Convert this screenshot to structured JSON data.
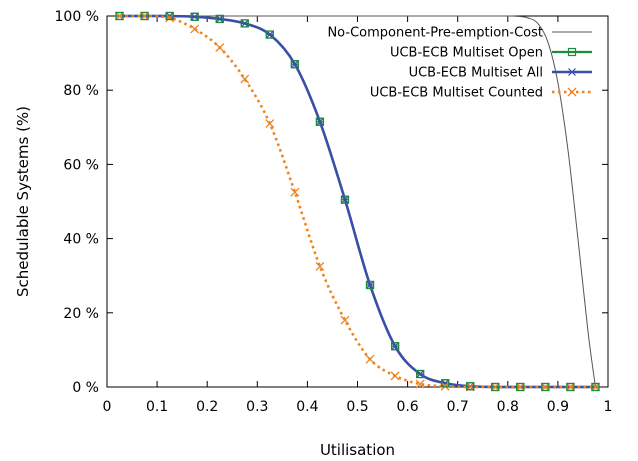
{
  "chart_data": {
    "type": "line",
    "title": "",
    "xlabel": "Utilisation",
    "ylabel": "Schedulable Systems (%)",
    "xlim": [
      0,
      1
    ],
    "ylim": [
      0,
      100
    ],
    "x_ticks": [
      0,
      0.1,
      0.2,
      0.3,
      0.4,
      0.5,
      0.6,
      0.7,
      0.8,
      0.9,
      1
    ],
    "x_tick_labels": [
      "0",
      "0.1",
      "0.2",
      "0.3",
      "0.4",
      "0.5",
      "0.6",
      "0.7",
      "0.8",
      "0.9",
      "1"
    ],
    "y_ticks": [
      0,
      20,
      40,
      60,
      80,
      100
    ],
    "y_tick_labels": [
      "0 %",
      "20 %",
      "40 %",
      "60 %",
      "80 %",
      "100 %"
    ],
    "grid": false,
    "legend_position": "top-right",
    "series": [
      {
        "name": "No-Component-Pre-emption-Cost",
        "color": "#555555",
        "marker": "none",
        "dash": "solid",
        "x": [
          0.025,
          0.1,
          0.2,
          0.3,
          0.4,
          0.5,
          0.6,
          0.7,
          0.75,
          0.8,
          0.82,
          0.84,
          0.86,
          0.88,
          0.9,
          0.92,
          0.94,
          0.96,
          0.975
        ],
        "y": [
          100,
          100,
          100,
          100,
          100,
          100,
          100,
          100,
          100,
          100,
          99.9,
          99.5,
          98,
          93,
          82,
          64,
          40,
          15,
          0
        ]
      },
      {
        "name": "UCB-ECB Multiset Open",
        "color": "#1a8c3c",
        "marker": "square",
        "dash": "solid",
        "x": [
          0.025,
          0.075,
          0.125,
          0.175,
          0.225,
          0.275,
          0.325,
          0.375,
          0.425,
          0.475,
          0.525,
          0.575,
          0.625,
          0.675,
          0.725,
          0.775,
          0.825,
          0.875,
          0.925,
          0.975
        ],
        "y": [
          100,
          100,
          100,
          99.8,
          99.2,
          98,
          95,
          87,
          71.5,
          50.5,
          27.5,
          11,
          3.5,
          1,
          0.2,
          0,
          0,
          0,
          0,
          0
        ]
      },
      {
        "name": "UCB-ECB Multiset All",
        "color": "#3a4fa8",
        "marker": "star",
        "dash": "solid",
        "x": [
          0.025,
          0.075,
          0.125,
          0.175,
          0.225,
          0.275,
          0.325,
          0.375,
          0.425,
          0.475,
          0.525,
          0.575,
          0.625,
          0.675,
          0.725,
          0.775,
          0.825,
          0.875,
          0.925,
          0.975
        ],
        "y": [
          100,
          100,
          100,
          99.8,
          99.2,
          98,
          95,
          87,
          71.5,
          50.5,
          27.5,
          11,
          3.5,
          1,
          0.2,
          0,
          0,
          0,
          0,
          0
        ]
      },
      {
        "name": "UCB-ECB Multiset Counted",
        "color": "#f0821e",
        "marker": "x",
        "dash": "dotted",
        "x": [
          0.025,
          0.075,
          0.125,
          0.175,
          0.225,
          0.275,
          0.325,
          0.375,
          0.425,
          0.475,
          0.525,
          0.575,
          0.625,
          0.675,
          0.725,
          0.775,
          0.825,
          0.875,
          0.925,
          0.975
        ],
        "y": [
          100,
          100,
          99.5,
          96.5,
          91.5,
          83,
          71,
          52.5,
          32.5,
          18,
          7.5,
          3,
          0.8,
          0.2,
          0,
          0,
          0,
          0,
          0,
          0
        ]
      }
    ]
  }
}
